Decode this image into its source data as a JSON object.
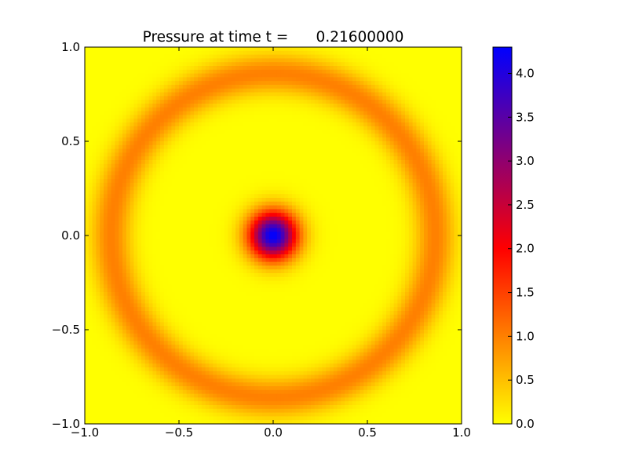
{
  "chart_data": {
    "type": "heatmap",
    "title": "Pressure at time t =      0.21600000",
    "xlabel": "",
    "ylabel": "",
    "xlim": [
      -1.0,
      1.0
    ],
    "ylim": [
      -1.0,
      1.0
    ],
    "x_ticks": [
      -1.0,
      -0.5,
      0.0,
      0.5,
      1.0
    ],
    "y_ticks": [
      -1.0,
      -0.5,
      0.0,
      0.5,
      1.0
    ],
    "x_tick_labels": [
      "−1.0",
      "−0.5",
      "0.0",
      "0.5",
      "1.0"
    ],
    "y_tick_labels": [
      "−1.0",
      "−0.5",
      "0.0",
      "0.5",
      "1.0"
    ],
    "grid_resolution": 100,
    "field": {
      "description_units": "pressure",
      "central_peak": {
        "center": [
          0.0,
          0.0
        ],
        "amplitude": 4.3,
        "sigma": 0.09
      },
      "ring": {
        "center": [
          0.0,
          0.0
        ],
        "radius": 0.86,
        "amplitude": 1.0,
        "sigma": 0.075
      }
    },
    "colorbar": {
      "range": [
        0.0,
        4.3
      ],
      "ticks": [
        0.0,
        0.5,
        1.0,
        1.5,
        2.0,
        2.5,
        3.0,
        3.5,
        4.0
      ],
      "tick_labels": [
        "0.0",
        "0.5",
        "1.0",
        "1.5",
        "2.0",
        "2.5",
        "3.0",
        "3.5",
        "4.0"
      ],
      "colormap": [
        {
          "value": 0.0,
          "color": "#ffff00"
        },
        {
          "value": 1.0,
          "color": "#ff8000"
        },
        {
          "value": 2.0,
          "color": "#ff0000"
        },
        {
          "value": 4.3,
          "color": "#0000ff"
        }
      ]
    }
  }
}
